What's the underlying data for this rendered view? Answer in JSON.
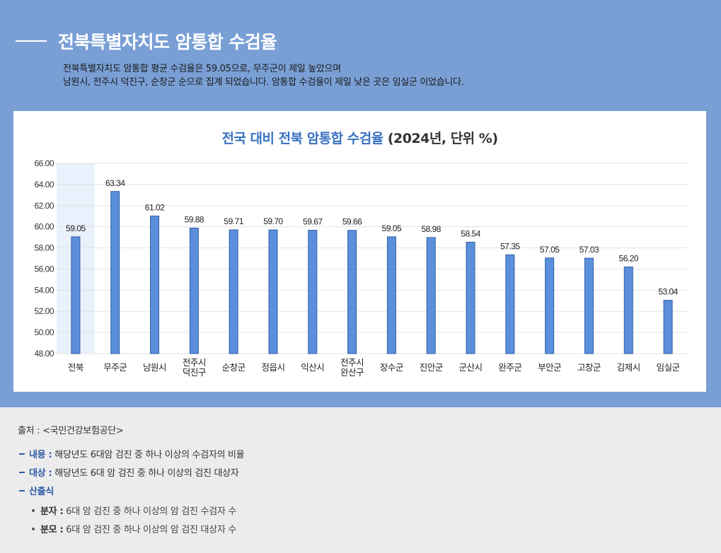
{
  "header": {
    "title": "전북특별자치도 암통합 수검율",
    "desc_line1": "전북특별자치도 암통합 평균 수검율은 59.05으로, 무주군이 제일 높았으며",
    "desc_line2": "남원시, 전주시 덕진구, 순창군 순으로 집계 되었습니다. 암통합 수검율이 제일 낮은 곳은 임실군 이었습니다."
  },
  "colors": {
    "header_bg": "#799fd5",
    "bar": "#5b8fdb",
    "bar_stroke": "#2f5ea8",
    "highlight": "#e8f1fc",
    "title_accent": "#3a72c1"
  },
  "chart_data": {
    "type": "bar",
    "title_main": "전국 대비 전북 암통합 수검율",
    "title_sub": "(2024년, 단위 %)",
    "categories": [
      "전북",
      "무주군",
      "남원시",
      "전주시\n덕진구",
      "순창군",
      "정읍시",
      "익산시",
      "전주시\n완산구",
      "장수군",
      "진안군",
      "군산시",
      "완주군",
      "부안군",
      "고창군",
      "김제시",
      "임실군"
    ],
    "values": [
      59.05,
      63.34,
      61.02,
      59.88,
      59.71,
      59.7,
      59.67,
      59.66,
      59.05,
      58.98,
      58.54,
      57.35,
      57.05,
      57.03,
      56.2,
      53.04
    ],
    "value_labels": [
      "59.05",
      "63.34",
      "61.02",
      "59.88",
      "59.71",
      "59.70",
      "59.67",
      "59.66",
      "59.05",
      "58.98",
      "58.54",
      "57.35",
      "57.05",
      "57.03",
      "56.20",
      "53.04"
    ],
    "ylim": [
      48,
      66
    ],
    "yticks": [
      "48.00",
      "50.00",
      "52.00",
      "54.00",
      "56.00",
      "58.00",
      "60.00",
      "62.00",
      "64.00",
      "66.00"
    ],
    "highlight_category": "전북",
    "grid": true,
    "legend": "none"
  },
  "footer": {
    "source": "출처 : <국민건강보험공단>",
    "content_key": "내용 :",
    "content_val": "해당년도 6대암 검진 중 하나 이상의 수검자의 비율",
    "target_key": "대상 :",
    "target_val": "해당년도 6대 암 검진 중 하나 이상의 검진 대상자",
    "formula_key": "산출식",
    "numerator_key": "분자 :",
    "numerator_val": "6대 암 검진 중 하나 이상의 암 검진 수검자 수",
    "denominator_key": "분모 :",
    "denominator_val": "6대 암 검진 중 하나 이상의 암 검진 대상자 수"
  }
}
